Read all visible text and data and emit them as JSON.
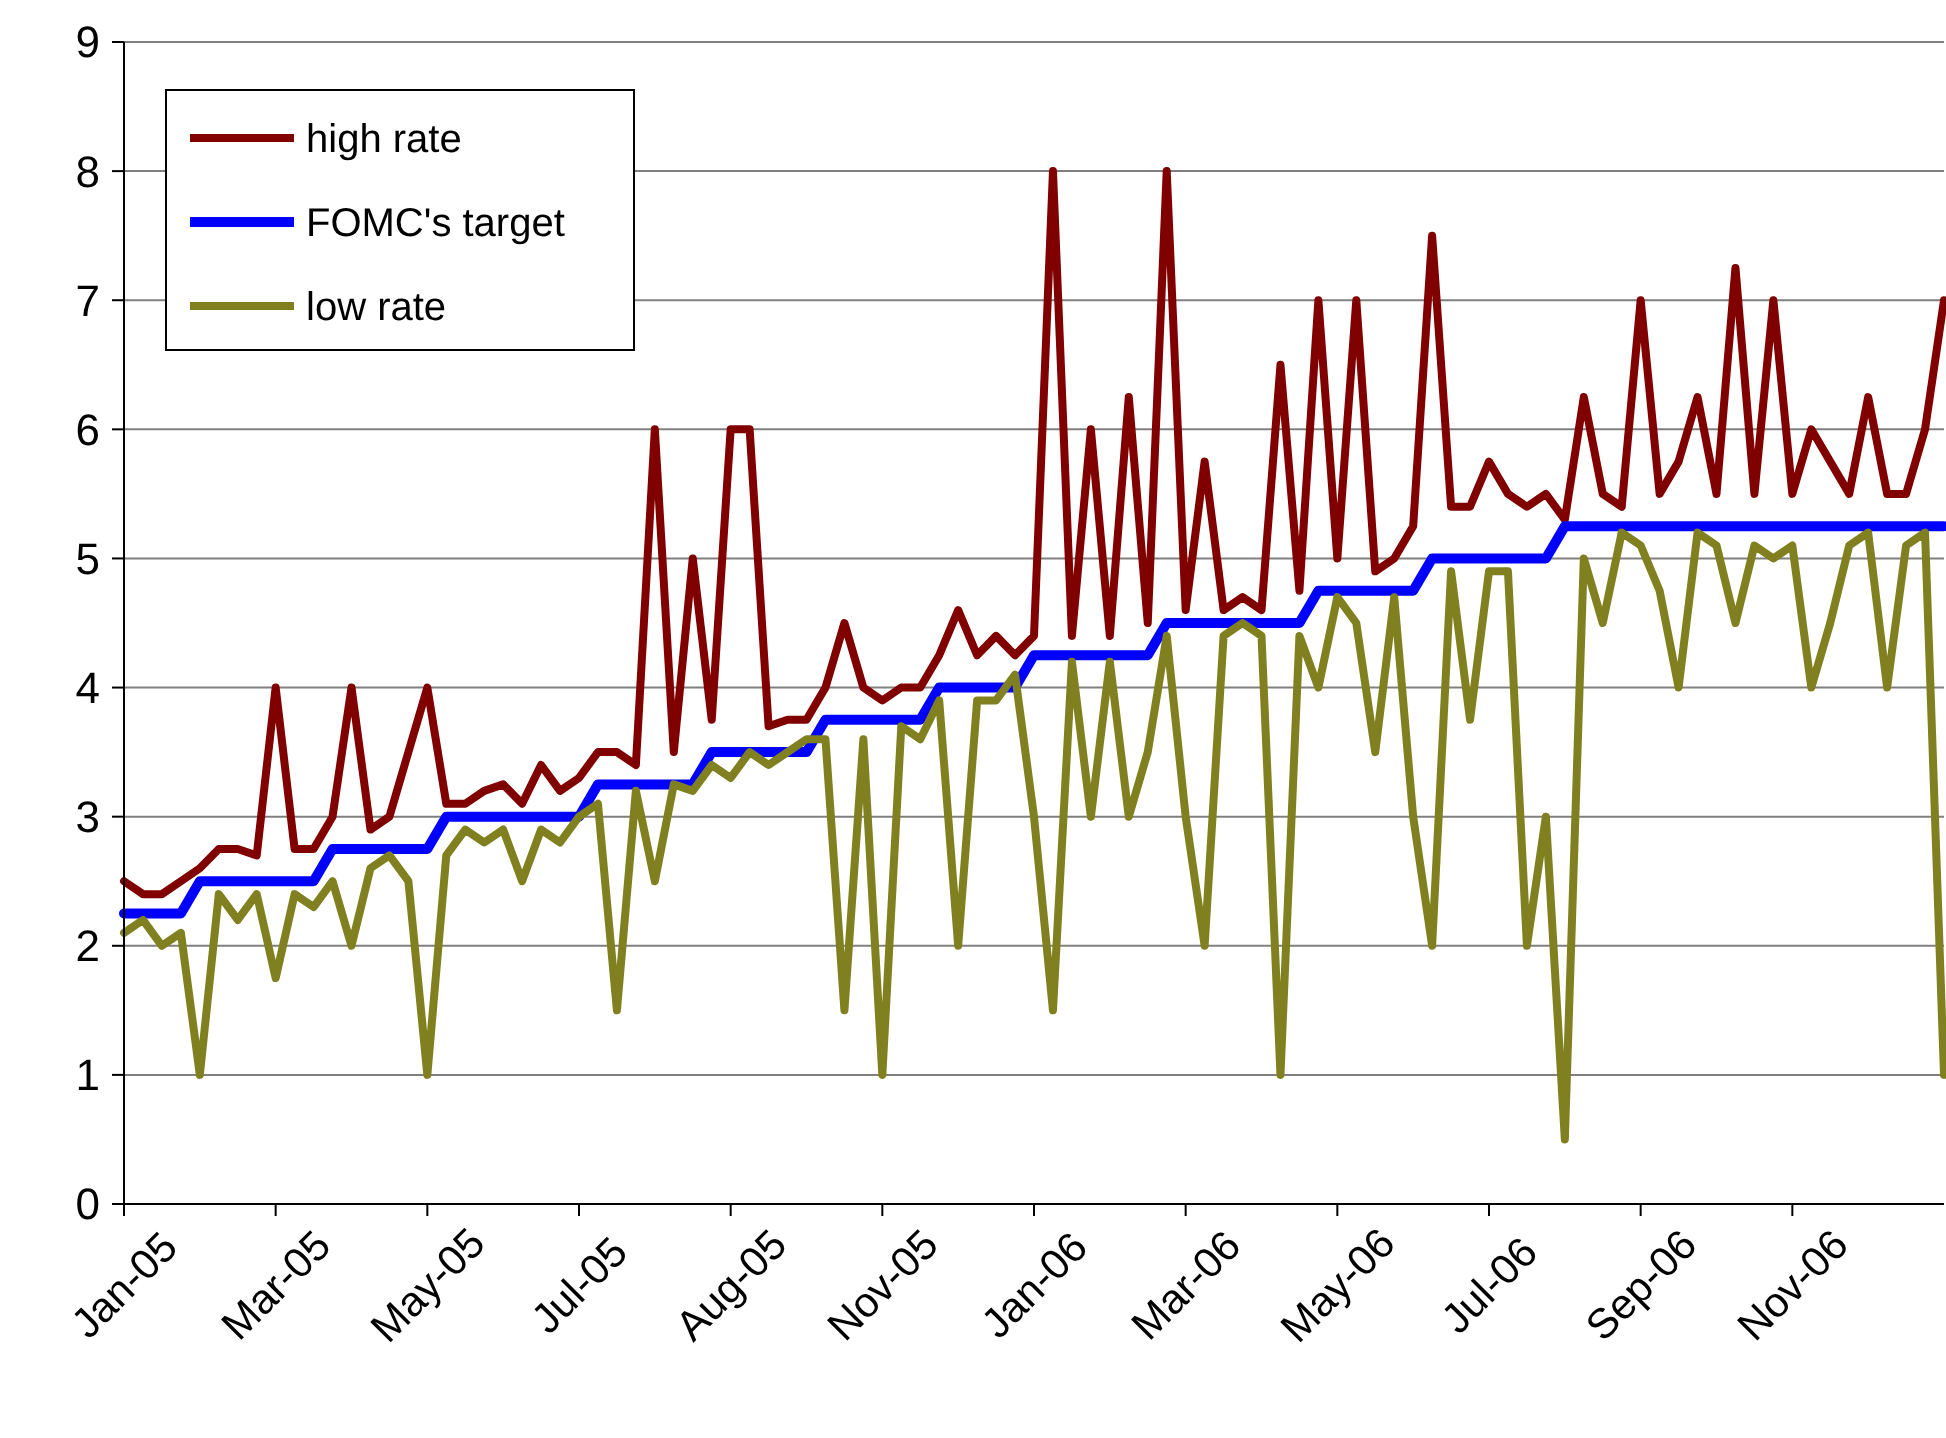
{
  "chart_data": {
    "type": "line",
    "categories": [
      "Jan-05",
      null,
      null,
      null,
      null,
      null,
      null,
      null,
      "Mar-05",
      null,
      null,
      null,
      null,
      null,
      null,
      null,
      "May-05",
      null,
      null,
      null,
      null,
      null,
      null,
      null,
      "Jul-05",
      null,
      null,
      null,
      null,
      null,
      null,
      null,
      "Aug-05",
      null,
      null,
      null,
      null,
      null,
      null,
      null,
      "Nov-05",
      null,
      null,
      null,
      null,
      null,
      null,
      null,
      "Jan-06",
      null,
      null,
      null,
      null,
      null,
      null,
      null,
      "Mar-06",
      null,
      null,
      null,
      null,
      null,
      null,
      null,
      "May-06",
      null,
      null,
      null,
      null,
      null,
      null,
      null,
      "Jul-06",
      null,
      null,
      null,
      null,
      null,
      null,
      null,
      "Sep-06",
      null,
      null,
      null,
      null,
      null,
      null,
      null,
      "Nov-06",
      null,
      null,
      null,
      null,
      null,
      null,
      null,
      null
    ],
    "series": [
      {
        "name": "high rate",
        "color": "#800000",
        "values": [
          2.5,
          2.4,
          2.4,
          2.5,
          2.6,
          2.75,
          2.75,
          2.7,
          4.0,
          2.75,
          2.75,
          3.0,
          4.0,
          2.9,
          3.0,
          3.5,
          4.0,
          3.1,
          3.1,
          3.2,
          3.25,
          3.1,
          3.4,
          3.2,
          3.3,
          3.5,
          3.5,
          3.4,
          6.0,
          3.5,
          5.0,
          3.75,
          6.0,
          6.0,
          3.7,
          3.75,
          3.75,
          4.0,
          4.5,
          4.0,
          3.9,
          4.0,
          4.0,
          4.25,
          4.6,
          4.25,
          4.4,
          4.25,
          4.4,
          8.0,
          4.4,
          6.0,
          4.4,
          6.25,
          4.5,
          8.0,
          4.6,
          5.75,
          4.6,
          4.7,
          4.6,
          6.5,
          4.75,
          7.0,
          5.0,
          7.0,
          4.9,
          5.0,
          5.25,
          7.5,
          5.4,
          5.4,
          5.75,
          5.5,
          5.4,
          5.5,
          5.3,
          6.25,
          5.5,
          5.4,
          7.0,
          5.5,
          5.75,
          6.25,
          5.5,
          7.25,
          5.5,
          7.0,
          5.5,
          6.0,
          5.75,
          5.5,
          6.25,
          5.5,
          5.5,
          6.0,
          7.0
        ]
      },
      {
        "name": "FOMC's target",
        "color": "#0000ff",
        "values": [
          2.25,
          2.25,
          2.25,
          2.25,
          2.5,
          2.5,
          2.5,
          2.5,
          2.5,
          2.5,
          2.5,
          2.75,
          2.75,
          2.75,
          2.75,
          2.75,
          2.75,
          3.0,
          3.0,
          3.0,
          3.0,
          3.0,
          3.0,
          3.0,
          3.0,
          3.25,
          3.25,
          3.25,
          3.25,
          3.25,
          3.25,
          3.5,
          3.5,
          3.5,
          3.5,
          3.5,
          3.5,
          3.75,
          3.75,
          3.75,
          3.75,
          3.75,
          3.75,
          4.0,
          4.0,
          4.0,
          4.0,
          4.0,
          4.25,
          4.25,
          4.25,
          4.25,
          4.25,
          4.25,
          4.25,
          4.5,
          4.5,
          4.5,
          4.5,
          4.5,
          4.5,
          4.5,
          4.5,
          4.75,
          4.75,
          4.75,
          4.75,
          4.75,
          4.75,
          5.0,
          5.0,
          5.0,
          5.0,
          5.0,
          5.0,
          5.0,
          5.25,
          5.25,
          5.25,
          5.25,
          5.25,
          5.25,
          5.25,
          5.25,
          5.25,
          5.25,
          5.25,
          5.25,
          5.25,
          5.25,
          5.25,
          5.25,
          5.25,
          5.25,
          5.25,
          5.25,
          5.25
        ]
      },
      {
        "name": "low rate",
        "color": "#808020",
        "values": [
          2.1,
          2.2,
          2.0,
          2.1,
          1.0,
          2.4,
          2.2,
          2.4,
          1.75,
          2.4,
          2.3,
          2.5,
          2.0,
          2.6,
          2.7,
          2.5,
          1.0,
          2.7,
          2.9,
          2.8,
          2.9,
          2.5,
          2.9,
          2.8,
          3.0,
          3.1,
          1.5,
          3.2,
          2.5,
          3.25,
          3.2,
          3.4,
          3.3,
          3.5,
          3.4,
          3.5,
          3.6,
          3.6,
          1.5,
          3.6,
          1.0,
          3.7,
          3.6,
          3.9,
          2.0,
          3.9,
          3.9,
          4.1,
          3.0,
          1.5,
          4.2,
          3.0,
          4.2,
          3.0,
          3.5,
          4.4,
          3.0,
          2.0,
          4.4,
          4.5,
          4.4,
          1.0,
          4.4,
          4.0,
          4.7,
          4.5,
          3.5,
          4.7,
          3.0,
          2.0,
          4.9,
          3.75,
          4.9,
          4.9,
          2.0,
          3.0,
          0.5,
          5.0,
          4.5,
          5.2,
          5.1,
          4.75,
          4.0,
          5.2,
          5.1,
          4.5,
          5.1,
          5.0,
          5.1,
          4.0,
          4.5,
          5.1,
          5.2,
          4.0,
          5.1,
          5.2,
          1.0
        ]
      }
    ],
    "ylim": [
      0,
      9
    ],
    "yticks": [
      0,
      1,
      2,
      3,
      4,
      5,
      6,
      7,
      8,
      9
    ],
    "grid": "y",
    "legend": "top left",
    "marker": "none",
    "line_style": "solid"
  }
}
